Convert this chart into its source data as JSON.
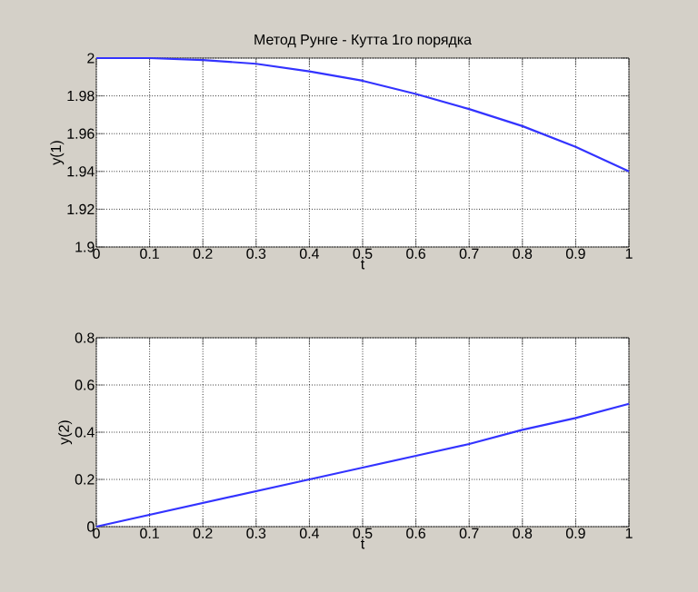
{
  "chart_data": [
    {
      "type": "line",
      "title": "Метод Рунге - Кутта 1го порядка",
      "xlabel": "t",
      "ylabel": "y(1)",
      "x": [
        0,
        0.1,
        0.2,
        0.3,
        0.4,
        0.5,
        0.6,
        0.7,
        0.8,
        0.9,
        1
      ],
      "series": [
        {
          "color": "#3333ff",
          "values": [
            2,
            2,
            1.999,
            1.997,
            1.993,
            1.988,
            1.981,
            1.973,
            1.964,
            1.953,
            1.94
          ]
        }
      ],
      "xlim": [
        0,
        1
      ],
      "ylim": [
        1.9,
        2
      ],
      "xticks": [
        0,
        0.1,
        0.2,
        0.3,
        0.4,
        0.5,
        0.6,
        0.7,
        0.8,
        0.9,
        1
      ],
      "yticks": [
        1.9,
        1.92,
        1.94,
        1.96,
        1.98,
        2
      ],
      "grid": true,
      "line_style": "solid"
    },
    {
      "type": "line",
      "xlabel": "t",
      "ylabel": "y(2)",
      "x": [
        0,
        0.1,
        0.2,
        0.3,
        0.4,
        0.5,
        0.6,
        0.7,
        0.8,
        0.9,
        1
      ],
      "series": [
        {
          "color": "#3333ff",
          "values": [
            0,
            0.05,
            0.1,
            0.15,
            0.2,
            0.25,
            0.3,
            0.35,
            0.41,
            0.46,
            0.52
          ]
        }
      ],
      "xlim": [
        0,
        1
      ],
      "ylim": [
        0,
        0.8
      ],
      "xticks": [
        0,
        0.1,
        0.2,
        0.3,
        0.4,
        0.5,
        0.6,
        0.7,
        0.8,
        0.9,
        1
      ],
      "yticks": [
        0,
        0.2,
        0.4,
        0.6,
        0.8
      ],
      "grid": true,
      "line_style": "solid"
    }
  ]
}
